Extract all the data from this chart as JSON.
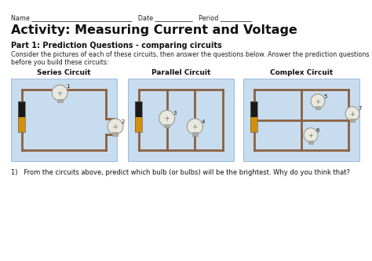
{
  "title": "Activity: Measuring Current and Voltage",
  "name_line": "Name ________________________________   Date ____________   Period __________",
  "part1_title": "Part 1: Prediction Questions - comparing circuits",
  "desc1": "Consider the pictures of each of these circuits, then answer the questions below. Answer the prediction questions",
  "desc2": "before you build these circuits:",
  "circuit_labels": [
    "Series Circuit",
    "Parallel Circuit",
    "Complex Circuit"
  ],
  "question": "1)   From the circuits above, predict which bulb (or bulbs) will be the brightest. Why do you think that?",
  "bg_color": "#ffffff",
  "circuit_bg": "#c8dcf0",
  "wire_color": "#8B6040",
  "battery_dark": "#1a1a1a",
  "battery_gold": "#d4900a",
  "bulb_fill": "#e8e8e0",
  "bulb_edge": "#999988"
}
